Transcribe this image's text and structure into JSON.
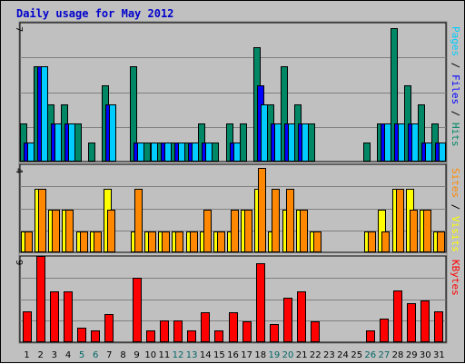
{
  "title": "Daily usage for May 2012",
  "chart_data": {
    "type": "bar",
    "categories": [
      "1",
      "2",
      "3",
      "4",
      "5",
      "6",
      "7",
      "8",
      "9",
      "10",
      "11",
      "12",
      "13",
      "14",
      "15",
      "16",
      "17",
      "18",
      "19",
      "20",
      "21",
      "22",
      "23",
      "24",
      "25",
      "26",
      "27",
      "28",
      "29",
      "30",
      "31"
    ],
    "weekend_color": "#006666",
    "weekday_color": "#000000",
    "weekend_days": [
      "5",
      "6",
      "12",
      "13",
      "19",
      "20",
      "26",
      "27"
    ],
    "panels": [
      {
        "name": "hits-files-pages",
        "ymax_label": "7",
        "ymax": 7.3,
        "right_label": [
          {
            "text": "Pages",
            "color": "#00ccff"
          },
          {
            "text": " / ",
            "color": "#000000"
          },
          {
            "text": "Files",
            "color": "#0000ff"
          },
          {
            "text": " / ",
            "color": "#000000"
          },
          {
            "text": "Hits",
            "color": "#008866"
          }
        ],
        "series": [
          {
            "name": "Hits",
            "color": "#008866",
            "values": [
              2,
              5,
              3,
              3,
              2,
              1,
              4,
              0,
              5,
              1,
              1,
              1,
              1,
              2,
              1,
              2,
              2,
              6,
              3,
              5,
              3,
              2,
              0,
              0,
              0,
              1,
              2,
              7,
              4,
              3,
              2
            ]
          },
          {
            "name": "Files",
            "color": "#0000ff",
            "values": [
              1,
              5,
              2,
              2,
              0,
              0,
              3,
              0,
              1,
              0,
              1,
              1,
              1,
              1,
              0,
              1,
              0,
              4,
              2,
              2,
              2,
              0,
              0,
              0,
              0,
              0,
              2,
              2,
              2,
              1,
              1
            ]
          },
          {
            "name": "Pages",
            "color": "#00ccff",
            "values": [
              1,
              5,
              2,
              2,
              0,
              0,
              3,
              0,
              1,
              1,
              1,
              1,
              1,
              1,
              0,
              1,
              0,
              3,
              2,
              2,
              2,
              0,
              0,
              0,
              0,
              0,
              2,
              2,
              2,
              1,
              1
            ]
          }
        ]
      },
      {
        "name": "visits-sites",
        "ymax_label": "4",
        "ymax": 4.15,
        "right_label": [
          {
            "text": "Sites",
            "color": "#ff8800"
          },
          {
            "text": " / ",
            "color": "#000000"
          },
          {
            "text": "Visits",
            "color": "#ffff00"
          }
        ],
        "series": [
          {
            "name": "Visits",
            "color": "#ffff00",
            "values": [
              1,
              3,
              2,
              2,
              1,
              1,
              3,
              0,
              1,
              1,
              1,
              1,
              1,
              1,
              1,
              1,
              2,
              3,
              1,
              2,
              2,
              1,
              0,
              0,
              0,
              1,
              2,
              3,
              3,
              2,
              1
            ]
          },
          {
            "name": "Sites",
            "color": "#ff8800",
            "values": [
              1,
              3,
              2,
              2,
              1,
              1,
              2,
              0,
              3,
              1,
              1,
              1,
              1,
              2,
              1,
              2,
              2,
              4,
              3,
              3,
              2,
              1,
              0,
              0,
              0,
              1,
              1,
              3,
              2,
              2,
              1
            ]
          }
        ]
      },
      {
        "name": "kbytes",
        "ymax_label": "9",
        "ymax": 9,
        "right_label": [
          {
            "text": "KBytes",
            "color": "#ff0000"
          }
        ],
        "series": [
          {
            "name": "KBytes",
            "color": "#ff0000",
            "values": [
              3.2,
              9,
              5.3,
              5.3,
              1.5,
              1.2,
              2.9,
              0,
              6.7,
              1.2,
              2.3,
              2.3,
              1.2,
              3.1,
              1.2,
              3.1,
              2.2,
              8.2,
              1.9,
              4.6,
              5.3,
              2.2,
              0,
              0,
              0,
              1.2,
              2.5,
              5.4,
              4.1,
              4.4,
              3.2
            ]
          }
        ]
      }
    ]
  }
}
